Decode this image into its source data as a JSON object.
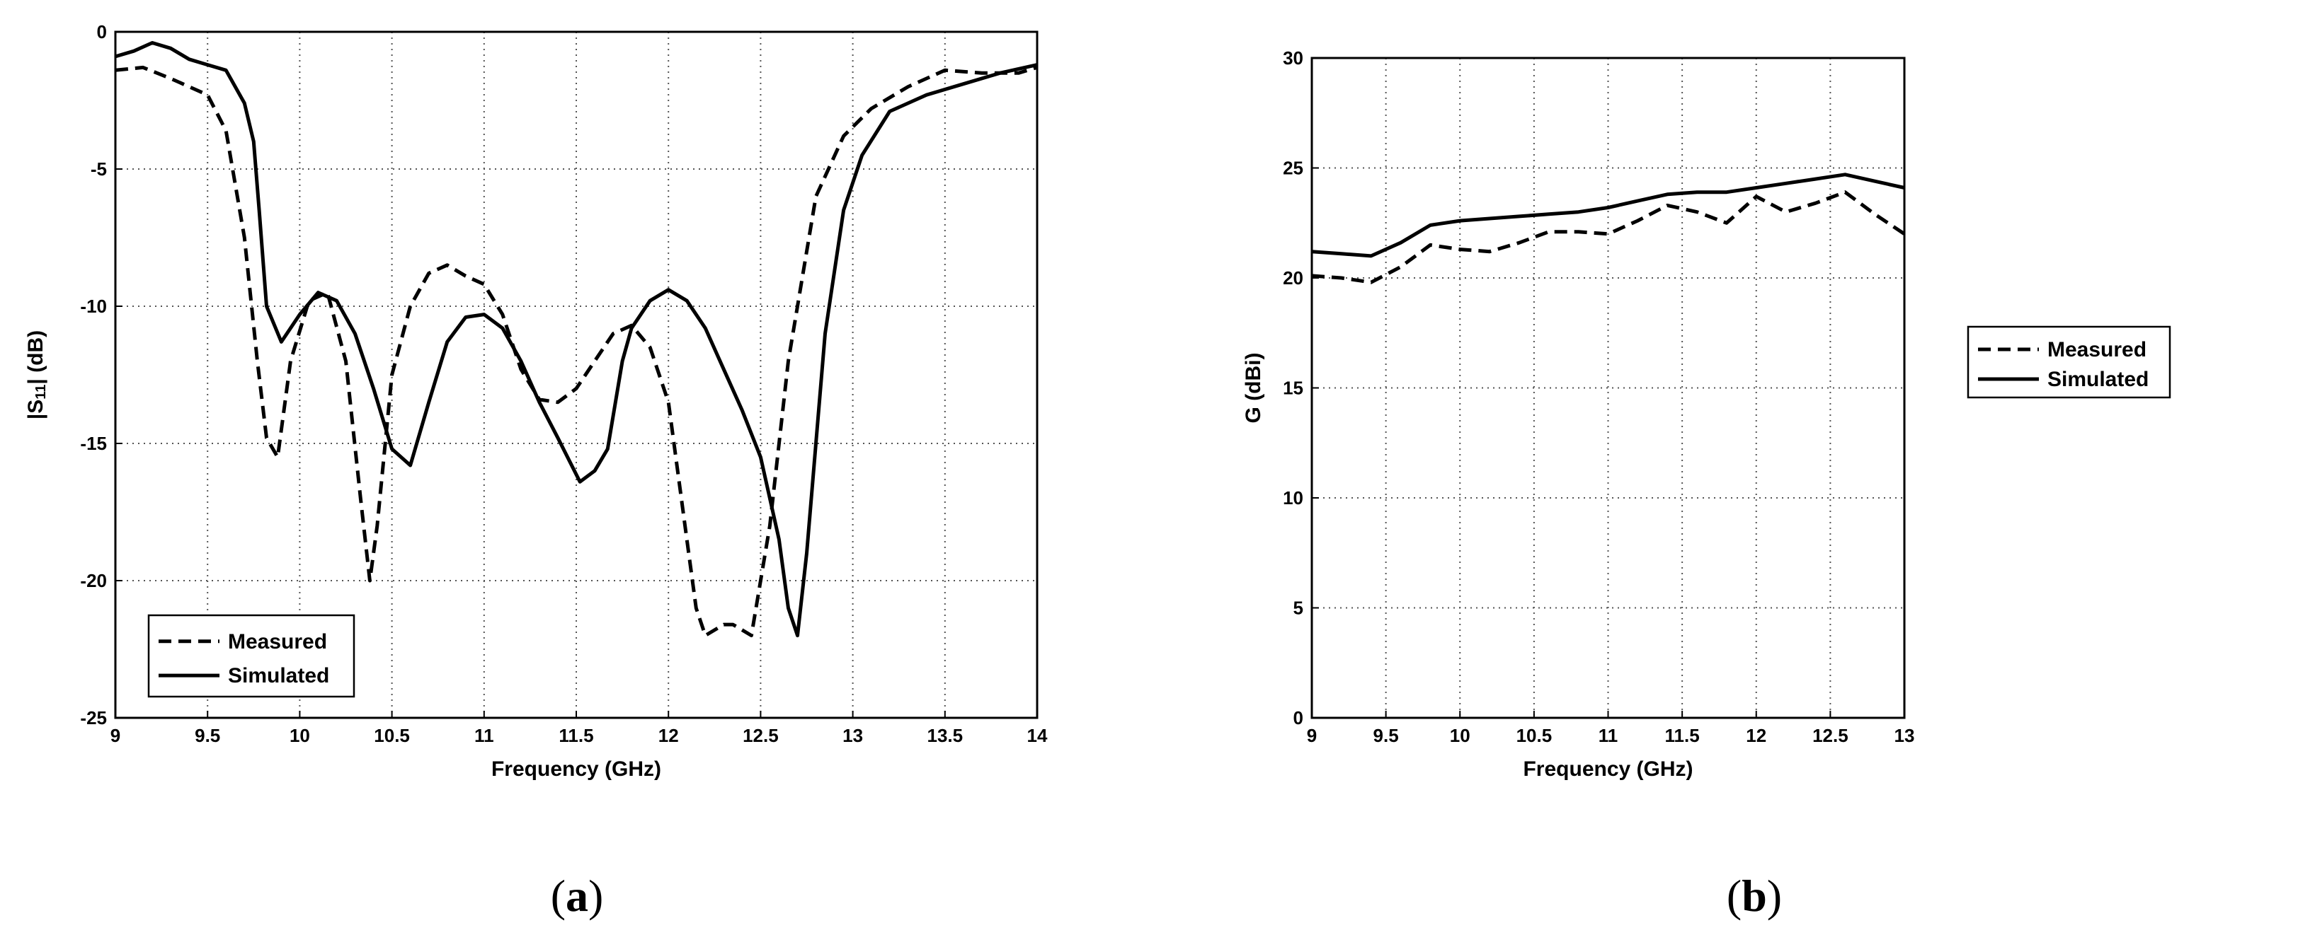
{
  "chart_data": [
    {
      "type": "line",
      "panel_label": "(a)",
      "xlabel": "Frequency (GHz)",
      "ylabel": "|S11| (dB)",
      "xlim": [
        9,
        14
      ],
      "ylim": [
        -25,
        0
      ],
      "xticks": [
        "9",
        "9.5",
        "10",
        "10.5",
        "11",
        "11.5",
        "12",
        "12.5",
        "13",
        "13.5",
        "14"
      ],
      "yticks": [
        "-25",
        "-20",
        "-15",
        "-10",
        "-5",
        "0"
      ],
      "xtick_values": [
        9,
        9.5,
        10,
        10.5,
        11,
        11.5,
        12,
        12.5,
        13,
        13.5,
        14
      ],
      "ytick_values": [
        -25,
        -20,
        -15,
        -10,
        -5,
        0
      ],
      "grid": true,
      "legend_position": "bottom-left",
      "series": [
        {
          "name": "Measured",
          "style": "dashed",
          "x": [
            9,
            9.15,
            9.3,
            9.5,
            9.6,
            9.7,
            9.77,
            9.82,
            9.88,
            9.95,
            10.05,
            10.15,
            10.25,
            10.33,
            10.38,
            10.42,
            10.5,
            10.6,
            10.7,
            10.8,
            10.9,
            11.0,
            11.1,
            11.2,
            11.3,
            11.4,
            11.5,
            11.6,
            11.7,
            11.8,
            11.9,
            12.0,
            12.1,
            12.15,
            12.2,
            12.3,
            12.35,
            12.4,
            12.45,
            12.55,
            12.65,
            12.8,
            12.95,
            13.1,
            13.3,
            13.5,
            13.7,
            13.9,
            14.0
          ],
          "y": [
            -1.4,
            -1.3,
            -1.7,
            -2.3,
            -3.6,
            -7.5,
            -12.0,
            -14.8,
            -15.5,
            -12.0,
            -9.8,
            -9.5,
            -12.0,
            -17.0,
            -20.0,
            -18.0,
            -12.5,
            -10.0,
            -8.8,
            -8.5,
            -8.9,
            -9.2,
            -10.3,
            -12.3,
            -13.4,
            -13.5,
            -13.0,
            -12.0,
            -11.0,
            -10.7,
            -11.5,
            -13.5,
            -18.5,
            -21.0,
            -22.0,
            -21.6,
            -21.6,
            -21.8,
            -22.0,
            -18.0,
            -12.0,
            -6.0,
            -3.8,
            -2.8,
            -2.0,
            -1.4,
            -1.5,
            -1.5,
            -1.3
          ]
        },
        {
          "name": "Simulated",
          "style": "solid",
          "x": [
            9,
            9.1,
            9.2,
            9.3,
            9.4,
            9.5,
            9.6,
            9.7,
            9.75,
            9.78,
            9.82,
            9.9,
            10.0,
            10.1,
            10.2,
            10.3,
            10.4,
            10.5,
            10.6,
            10.7,
            10.8,
            10.9,
            11.0,
            11.1,
            11.2,
            11.3,
            11.4,
            11.52,
            11.6,
            11.67,
            11.7,
            11.75,
            11.8,
            11.9,
            12.0,
            12.1,
            12.2,
            12.3,
            12.4,
            12.5,
            12.6,
            12.65,
            12.7,
            12.75,
            12.85,
            12.95,
            13.05,
            13.2,
            13.4,
            13.6,
            13.8,
            14.0
          ],
          "y": [
            -0.9,
            -0.7,
            -0.4,
            -0.6,
            -1.0,
            -1.2,
            -1.4,
            -2.6,
            -4.0,
            -6.5,
            -10.0,
            -11.3,
            -10.3,
            -9.5,
            -9.8,
            -11.0,
            -13.0,
            -15.2,
            -15.8,
            -13.5,
            -11.3,
            -10.4,
            -10.3,
            -10.8,
            -12.0,
            -13.5,
            -14.8,
            -16.4,
            -16.0,
            -15.2,
            -14.0,
            -12.0,
            -10.8,
            -9.8,
            -9.4,
            -9.8,
            -10.8,
            -12.3,
            -13.8,
            -15.5,
            -18.5,
            -21.0,
            -22.0,
            -19.0,
            -11.0,
            -6.5,
            -4.5,
            -2.9,
            -2.3,
            -1.9,
            -1.5,
            -1.2
          ]
        }
      ]
    },
    {
      "type": "line",
      "panel_label": "(b)",
      "xlabel": "Frequency (GHz)",
      "ylabel": "G (dBi)",
      "xlim": [
        9,
        13
      ],
      "ylim": [
        0,
        30
      ],
      "xticks": [
        "9",
        "9.5",
        "10",
        "10.5",
        "11",
        "11.5",
        "12",
        "12.5",
        "13"
      ],
      "yticks": [
        "0",
        "5",
        "10",
        "15",
        "20",
        "25",
        "30"
      ],
      "xtick_values": [
        9,
        9.5,
        10,
        10.5,
        11,
        11.5,
        12,
        12.5,
        13
      ],
      "ytick_values": [
        0,
        5,
        10,
        15,
        20,
        25,
        30
      ],
      "grid": true,
      "legend_position": "right-middle",
      "series": [
        {
          "name": "Measured",
          "style": "dashed",
          "x": [
            9.0,
            9.2,
            9.4,
            9.6,
            9.8,
            10.0,
            10.2,
            10.4,
            10.6,
            10.8,
            11.0,
            11.2,
            11.4,
            11.6,
            11.8,
            12.0,
            12.2,
            12.4,
            12.6,
            12.8,
            13.0
          ],
          "y": [
            20.1,
            20.0,
            19.8,
            20.5,
            21.5,
            21.3,
            21.2,
            21.6,
            22.1,
            22.1,
            22.0,
            22.6,
            23.3,
            23.0,
            22.5,
            23.7,
            23.0,
            23.4,
            23.9,
            22.9,
            22.0
          ]
        },
        {
          "name": "Simulated",
          "style": "solid",
          "x": [
            9.0,
            9.2,
            9.4,
            9.6,
            9.8,
            10.0,
            10.2,
            10.4,
            10.6,
            10.8,
            11.0,
            11.2,
            11.4,
            11.6,
            11.8,
            12.0,
            12.2,
            12.4,
            12.6,
            12.8,
            13.0
          ],
          "y": [
            21.2,
            21.1,
            21.0,
            21.6,
            22.4,
            22.6,
            22.7,
            22.8,
            22.9,
            23.0,
            23.2,
            23.5,
            23.8,
            23.9,
            23.9,
            24.1,
            24.3,
            24.5,
            24.7,
            24.4,
            24.1
          ]
        }
      ]
    }
  ]
}
